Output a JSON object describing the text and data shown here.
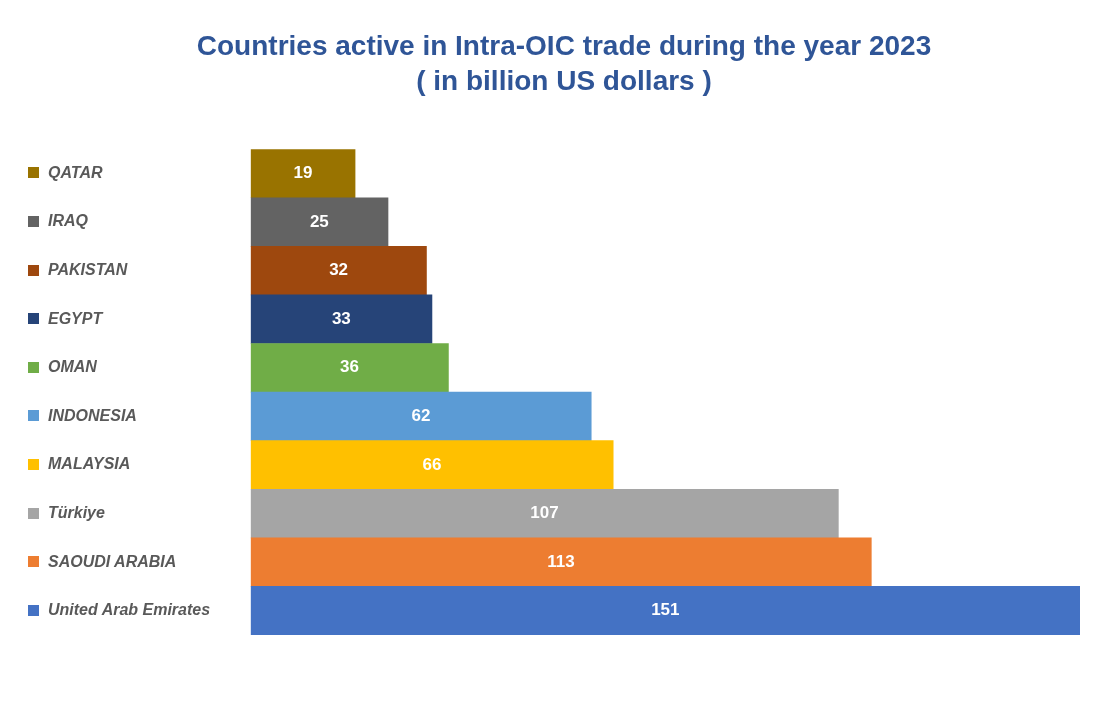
{
  "chart_data": {
    "type": "bar",
    "orientation": "horizontal",
    "title": "Countries active in Intra-OIC trade during the year 2023",
    "subtitle": "( in billion US dollars )",
    "categories": [
      "QATAR",
      "IRAQ",
      "PAKISTAN",
      "EGYPT",
      "OMAN",
      "INDONESIA",
      "MALAYSIA",
      "Türkiye",
      "SAOUDI ARABIA",
      "United Arab Emirates"
    ],
    "values": [
      19,
      25,
      32,
      33,
      36,
      62,
      66,
      107,
      113,
      151
    ],
    "colors": [
      "#997300",
      "#636363",
      "#9e480e",
      "#264478",
      "#70ad47",
      "#5b9bd5",
      "#ffc000",
      "#a5a5a5",
      "#ed7d31",
      "#4472c4"
    ],
    "data_labels": true,
    "tick_labels": "y"
  }
}
